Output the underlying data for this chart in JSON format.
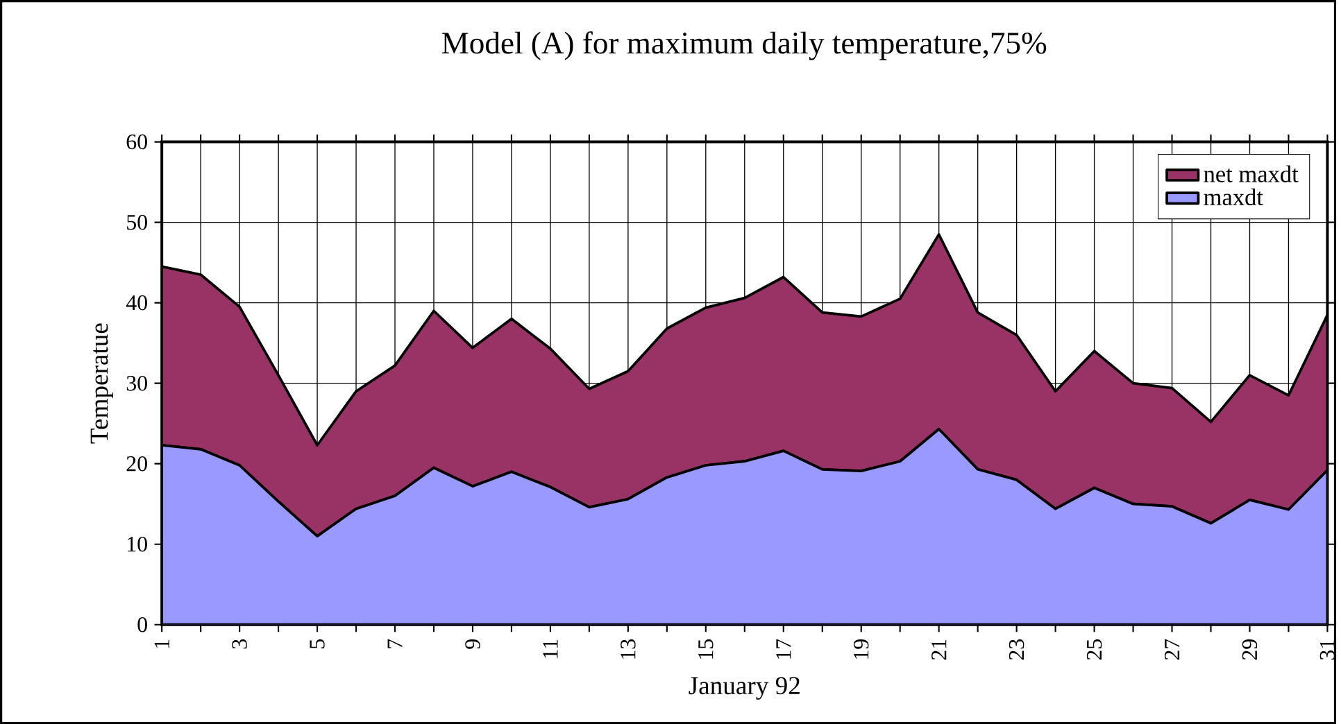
{
  "chart_data": {
    "type": "area",
    "title": "Model (A) for maximum daily temperature,75%",
    "xlabel": "January 92",
    "ylabel": "Temperatue",
    "categories": [
      "1",
      null,
      "3",
      null,
      "5",
      null,
      "7",
      null,
      "9",
      null,
      "11",
      null,
      "13",
      null,
      "15",
      null,
      "17",
      null,
      "19",
      null,
      "21",
      null,
      "23",
      null,
      "25",
      null,
      "27",
      null,
      "29",
      null,
      "31"
    ],
    "stacked": true,
    "series": [
      {
        "name": "maxdt",
        "color": "#9999ff",
        "values": [
          22.3,
          21.8,
          19.8,
          15.3,
          11,
          14.4,
          16,
          19.5,
          17.2,
          19,
          17.1,
          14.6,
          15.6,
          18.3,
          19.8,
          20.3,
          21.6,
          19.3,
          19.1,
          20.3,
          24.3,
          19.3,
          18,
          14.4,
          17,
          15,
          14.7,
          12.6,
          15.5,
          14.3,
          19.2
        ]
      },
      {
        "name": "net maxdt",
        "color": "#993366",
        "values": [
          22.2,
          21.7,
          19.7,
          15.7,
          11.3,
          14.6,
          16.2,
          19.5,
          17.2,
          19,
          17.2,
          14.7,
          15.9,
          18.5,
          19.6,
          20.3,
          21.6,
          19.5,
          19.2,
          20.2,
          24.2,
          19.5,
          18,
          14.6,
          17,
          15,
          14.7,
          12.6,
          15.5,
          14.2,
          19.3
        ]
      }
    ],
    "ylim": [
      0,
      60
    ],
    "yticks": [
      0,
      10,
      20,
      30,
      40,
      50,
      60
    ],
    "grid": true,
    "legend": "top right"
  }
}
